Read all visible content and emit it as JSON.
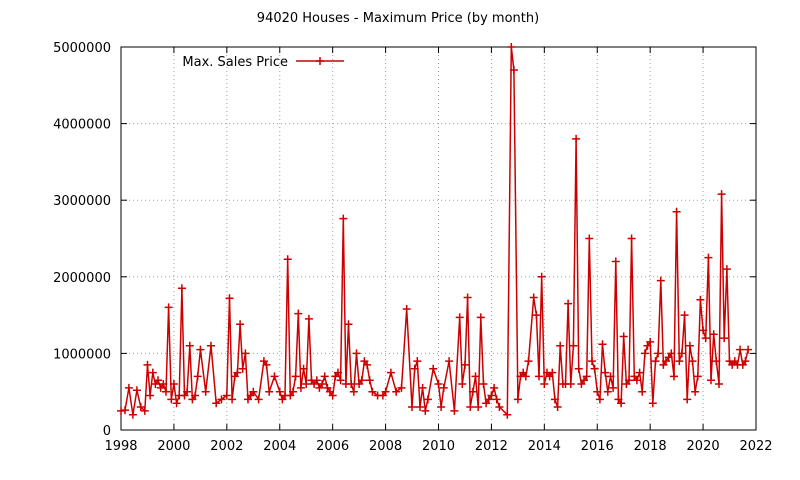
{
  "chart_data": {
    "type": "line",
    "title": "94020 Houses - Maximum Price (by month)",
    "xlabel": "",
    "ylabel": "",
    "xlim": [
      1998,
      2022
    ],
    "ylim": [
      0,
      5000000
    ],
    "xticks": [
      1998,
      2000,
      2002,
      2004,
      2006,
      2008,
      2010,
      2012,
      2014,
      2016,
      2018,
      2020,
      2022
    ],
    "yticks": [
      0,
      1000000,
      2000000,
      3000000,
      4000000,
      5000000
    ],
    "grid": true,
    "legend": {
      "position": "top-left",
      "entries": [
        "Max. Sales Price"
      ]
    },
    "colors": {
      "series": "#cc0000",
      "grid": "#a0a0a0",
      "axis": "#000000"
    },
    "series": [
      {
        "name": "Max. Sales Price",
        "marker": "plus",
        "x": [
          1998.0,
          1998.15,
          1998.3,
          1998.45,
          1998.6,
          1998.75,
          1998.9,
          1999.0,
          1999.1,
          1999.2,
          1999.3,
          1999.4,
          1999.5,
          1999.6,
          1999.7,
          1999.8,
          1999.9,
          2000.0,
          2000.1,
          2000.2,
          2000.3,
          2000.4,
          2000.5,
          2000.6,
          2000.7,
          2000.8,
          2000.9,
          2001.0,
          2001.2,
          2001.4,
          2001.6,
          2001.8,
          2002.0,
          2002.1,
          2002.2,
          2002.3,
          2002.4,
          2002.5,
          2002.6,
          2002.7,
          2002.8,
          2002.9,
          2003.0,
          2003.2,
          2003.4,
          2003.5,
          2003.6,
          2003.8,
          2004.0,
          2004.1,
          2004.2,
          2004.3,
          2004.4,
          2004.5,
          2004.6,
          2004.7,
          2004.8,
          2004.9,
          2005.0,
          2005.1,
          2005.2,
          2005.3,
          2005.4,
          2005.5,
          2005.6,
          2005.7,
          2005.8,
          2005.9,
          2006.0,
          2006.1,
          2006.2,
          2006.3,
          2006.4,
          2006.5,
          2006.6,
          2006.7,
          2006.8,
          2006.9,
          2007.0,
          2007.1,
          2007.2,
          2007.3,
          2007.4,
          2007.5,
          2007.7,
          2007.9,
          2008.0,
          2008.2,
          2008.4,
          2008.6,
          2008.8,
          2009.0,
          2009.1,
          2009.2,
          2009.3,
          2009.4,
          2009.5,
          2009.6,
          2009.8,
          2010.0,
          2010.1,
          2010.2,
          2010.4,
          2010.6,
          2010.8,
          2010.9,
          2011.0,
          2011.1,
          2011.2,
          2011.3,
          2011.4,
          2011.5,
          2011.6,
          2011.7,
          2011.8,
          2011.9,
          2012.0,
          2012.1,
          2012.2,
          2012.3,
          2012.6,
          2012.75,
          2012.85,
          2013.0,
          2013.1,
          2013.2,
          2013.3,
          2013.4,
          2013.6,
          2013.7,
          2013.8,
          2013.9,
          2014.0,
          2014.1,
          2014.2,
          2014.3,
          2014.4,
          2014.5,
          2014.6,
          2014.7,
          2014.8,
          2014.9,
          2015.0,
          2015.1,
          2015.2,
          2015.3,
          2015.4,
          2015.5,
          2015.6,
          2015.7,
          2015.8,
          2015.9,
          2016.0,
          2016.1,
          2016.2,
          2016.3,
          2016.4,
          2016.5,
          2016.6,
          2016.7,
          2016.8,
          2016.9,
          2017.0,
          2017.1,
          2017.2,
          2017.3,
          2017.4,
          2017.5,
          2017.6,
          2017.7,
          2017.8,
          2017.9,
          2018.0,
          2018.1,
          2018.2,
          2018.3,
          2018.4,
          2018.5,
          2018.6,
          2018.7,
          2018.8,
          2018.9,
          2019.0,
          2019.1,
          2019.2,
          2019.3,
          2019.4,
          2019.5,
          2019.6,
          2019.7,
          2019.8,
          2019.9,
          2020.0,
          2020.1,
          2020.2,
          2020.3,
          2020.4,
          2020.5,
          2020.6,
          2020.7,
          2020.8,
          2020.9,
          2021.0,
          2021.1,
          2021.2,
          2021.3,
          2021.4,
          2021.5,
          2021.6,
          2021.7
        ],
        "y": [
          250000,
          260000,
          550000,
          200000,
          520000,
          300000,
          250000,
          850000,
          450000,
          750000,
          600000,
          650000,
          550000,
          600000,
          500000,
          1600000,
          400000,
          600000,
          350000,
          450000,
          1850000,
          450000,
          500000,
          1100000,
          400000,
          450000,
          700000,
          1050000,
          500000,
          1100000,
          350000,
          400000,
          450000,
          1720000,
          400000,
          700000,
          750000,
          1380000,
          800000,
          1000000,
          400000,
          450000,
          500000,
          400000,
          900000,
          850000,
          500000,
          700000,
          500000,
          400000,
          450000,
          2230000,
          450000,
          500000,
          700000,
          1520000,
          550000,
          800000,
          600000,
          1450000,
          650000,
          600000,
          650000,
          550000,
          600000,
          700000,
          550000,
          500000,
          450000,
          700000,
          750000,
          650000,
          2760000,
          600000,
          1380000,
          600000,
          500000,
          1000000,
          600000,
          650000,
          900000,
          850000,
          650000,
          500000,
          450000,
          450000,
          500000,
          750000,
          500000,
          550000,
          1580000,
          300000,
          800000,
          900000,
          300000,
          550000,
          250000,
          400000,
          800000,
          600000,
          300000,
          550000,
          900000,
          250000,
          1470000,
          600000,
          850000,
          1730000,
          300000,
          500000,
          700000,
          300000,
          1470000,
          600000,
          350000,
          400000,
          450000,
          550000,
          400000,
          300000,
          200000,
          5000000,
          4700000,
          400000,
          700000,
          750000,
          700000,
          900000,
          1730000,
          1500000,
          700000,
          2000000,
          600000,
          750000,
          700000,
          750000,
          400000,
          300000,
          1100000,
          600000,
          600000,
          1650000,
          600000,
          1100000,
          3800000,
          800000,
          600000,
          650000,
          700000,
          2500000,
          900000,
          800000,
          500000,
          400000,
          1120000,
          750000,
          500000,
          700000,
          550000,
          2200000,
          400000,
          350000,
          1220000,
          600000,
          650000,
          2500000,
          700000,
          650000,
          750000,
          500000,
          1000000,
          1100000,
          1150000,
          350000,
          900000,
          1000000,
          1950000,
          850000,
          900000,
          950000,
          1000000,
          700000,
          2850000,
          900000,
          1000000,
          1500000,
          400000,
          1100000,
          900000,
          500000,
          700000,
          1700000,
          1300000,
          1200000,
          2250000,
          650000,
          1250000,
          900000,
          600000,
          3080000,
          1200000,
          2100000,
          900000,
          850000,
          900000,
          850000,
          1050000,
          850000,
          900000,
          1050000
        ]
      }
    ]
  }
}
